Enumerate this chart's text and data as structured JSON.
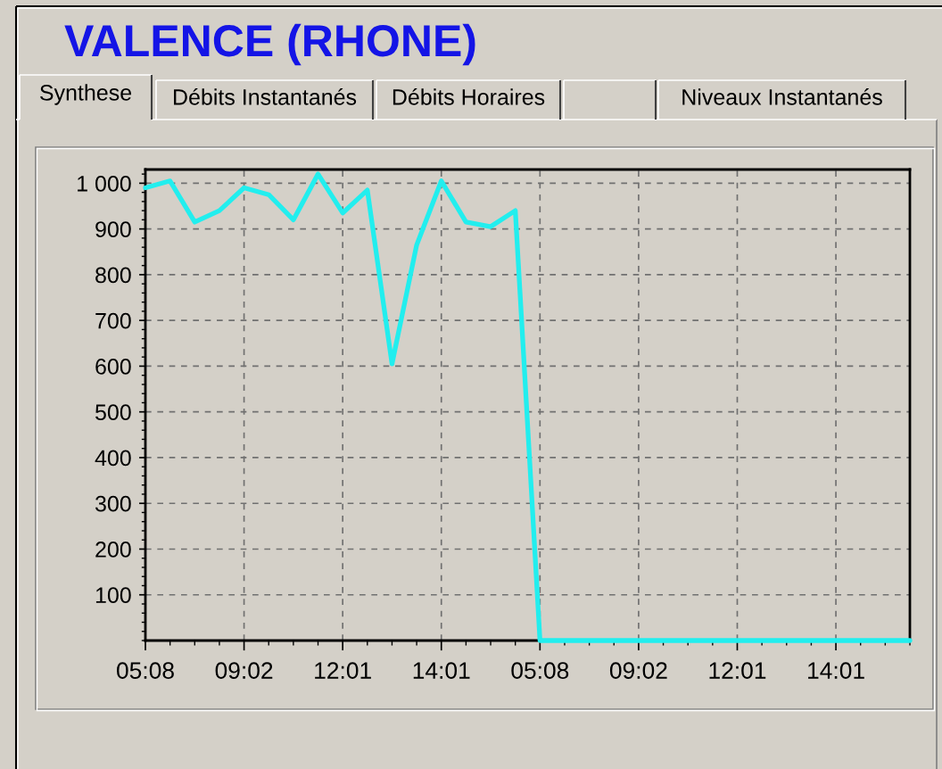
{
  "chart_data": {
    "type": "line",
    "title": "VALENCE (RHONE)",
    "annotations": [
      "Synthese",
      "Débits Instantanés",
      "Débits Horaires",
      "Niveaux Instantanés"
    ],
    "categories": [
      "05:08",
      null,
      null,
      null,
      "09:02",
      null,
      null,
      null,
      "12:01",
      null,
      null,
      null,
      "14:01",
      null,
      null,
      null,
      "05:08",
      null,
      null,
      null,
      "09:02",
      null,
      null,
      null,
      "12:01",
      null,
      null,
      null,
      "14:01",
      null,
      null,
      null
    ],
    "series": [
      {
        "color": "#22eeee",
        "values": [
          990,
          1005,
          915,
          940,
          990,
          975,
          920,
          1020,
          935,
          985,
          605,
          865,
          1005,
          915,
          905,
          940,
          0,
          0,
          0,
          0,
          0,
          0,
          0,
          0,
          0,
          0,
          0,
          0,
          0,
          0,
          0,
          0
        ]
      }
    ],
    "ylim": [
      0,
      1030
    ],
    "yticks": [
      100,
      200,
      300,
      400,
      500,
      600,
      700,
      800,
      900,
      {
        "value": 1000,
        "label": "1 000"
      }
    ],
    "grid": true
  }
}
